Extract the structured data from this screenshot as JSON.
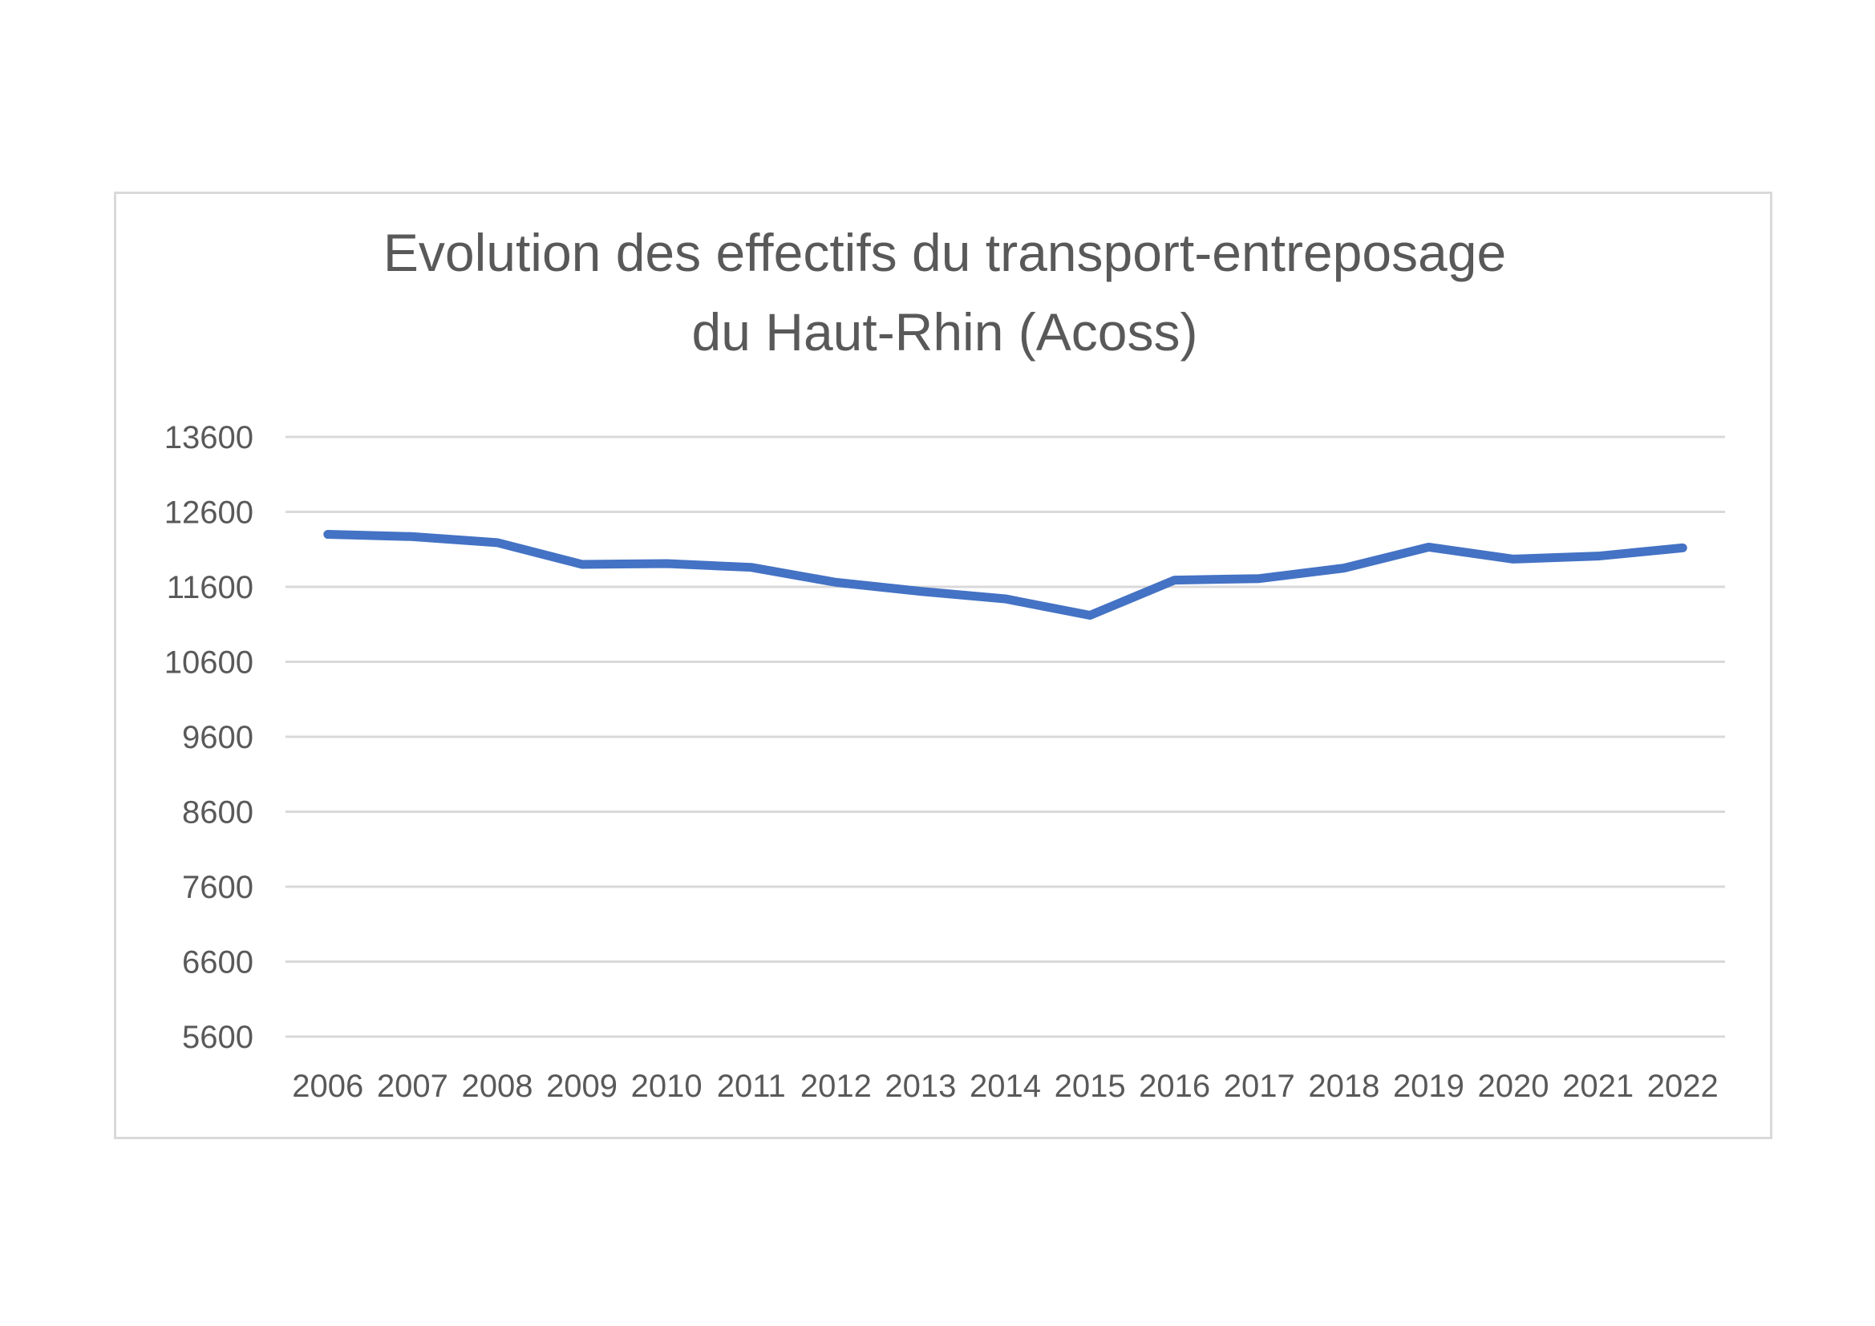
{
  "chart_data": {
    "type": "line",
    "title_lines": [
      "Evolution des effectifs du transport-entreposage",
      "du Haut-Rhin (Acoss)"
    ],
    "categories": [
      "2006",
      "2007",
      "2008",
      "2009",
      "2010",
      "2011",
      "2012",
      "2013",
      "2014",
      "2015",
      "2016",
      "2017",
      "2018",
      "2019",
      "2020",
      "2021",
      "2022"
    ],
    "series": [
      {
        "values": [
          12300,
          12270,
          12190,
          11900,
          11910,
          11860,
          11660,
          11540,
          11440,
          11220,
          11690,
          11710,
          11850,
          12130,
          11970,
          12010,
          12120
        ],
        "color": "#4472c4"
      }
    ],
    "yticks": [
      "13600",
      "12600",
      "11600",
      "10600",
      "9600",
      "8600",
      "7600",
      "6600",
      "5600"
    ],
    "ylim": [
      5600,
      13600
    ],
    "grid": true,
    "legend": "none",
    "xlabel": "",
    "ylabel": ""
  }
}
